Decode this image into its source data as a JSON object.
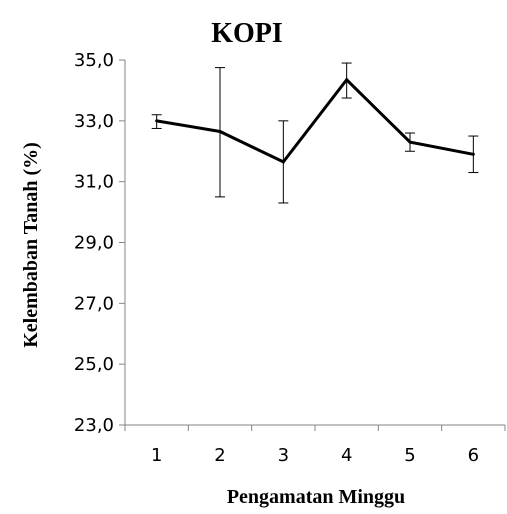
{
  "chart_data": {
    "type": "line",
    "title": "KOPI",
    "xlabel": "Pengamatan Minggu",
    "ylabel": "Kelembaban Tanah (%)",
    "categories": [
      "1",
      "2",
      "3",
      "4",
      "5",
      "6"
    ],
    "y_ticks": [
      "23,0",
      "25,0",
      "27,0",
      "29,0",
      "31,0",
      "33,0",
      "35,0"
    ],
    "ylim": [
      23,
      35
    ],
    "series": [
      {
        "values": [
          33.0,
          32.65,
          31.65,
          34.35,
          32.3,
          31.9
        ],
        "error_low": [
          32.75,
          30.5,
          30.3,
          33.75,
          32.0,
          31.3
        ],
        "error_high": [
          33.2,
          34.75,
          33.0,
          34.9,
          32.6,
          32.5
        ]
      }
    ],
    "grid": false,
    "line_color": "#000000"
  }
}
